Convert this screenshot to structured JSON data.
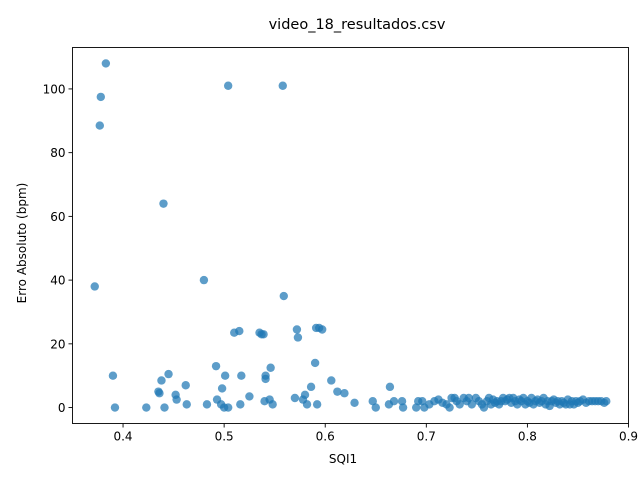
{
  "chart_data": {
    "type": "scatter",
    "title": "video_18_resultados.csv",
    "xlabel": "SQI1",
    "ylabel": "Erro Absoluto (bpm)",
    "xlim": [
      0.35,
      0.9
    ],
    "ylim": [
      -5,
      113
    ],
    "xticks": [
      0.4,
      0.5,
      0.6,
      0.7,
      0.8,
      0.9
    ],
    "xtick_labels": [
      "0.4",
      "0.5",
      "0.6",
      "0.7",
      "0.8",
      "0.9"
    ],
    "yticks": [
      0,
      20,
      40,
      60,
      80,
      100
    ],
    "ytick_labels": [
      "0",
      "20",
      "40",
      "60",
      "80",
      "100"
    ],
    "grid": false,
    "legend": "none",
    "marker_color": "#1f77b4",
    "series": [
      {
        "points": [
          [
            0.383,
            108
          ],
          [
            0.378,
            97.5
          ],
          [
            0.377,
            88.5
          ],
          [
            0.44,
            64
          ],
          [
            0.372,
            38
          ],
          [
            0.48,
            40
          ],
          [
            0.504,
            101
          ],
          [
            0.558,
            101
          ],
          [
            0.559,
            35
          ],
          [
            0.39,
            10
          ],
          [
            0.392,
            0
          ],
          [
            0.423,
            0
          ],
          [
            0.435,
            5
          ],
          [
            0.436,
            4.5
          ],
          [
            0.438,
            8.5
          ],
          [
            0.445,
            10.5
          ],
          [
            0.441,
            0
          ],
          [
            0.452,
            4
          ],
          [
            0.453,
            2.5
          ],
          [
            0.462,
            7
          ],
          [
            0.463,
            1
          ],
          [
            0.483,
            1
          ],
          [
            0.492,
            13
          ],
          [
            0.493,
            2.5
          ],
          [
            0.497,
            1
          ],
          [
            0.498,
            6
          ],
          [
            0.5,
            0
          ],
          [
            0.501,
            10
          ],
          [
            0.504,
            0
          ],
          [
            0.51,
            23.5
          ],
          [
            0.515,
            24
          ],
          [
            0.516,
            1
          ],
          [
            0.517,
            10
          ],
          [
            0.525,
            3.5
          ],
          [
            0.535,
            23.5
          ],
          [
            0.537,
            23
          ],
          [
            0.539,
            23
          ],
          [
            0.54,
            2
          ],
          [
            0.541,
            10
          ],
          [
            0.541,
            9
          ],
          [
            0.545,
            2.5
          ],
          [
            0.546,
            12.5
          ],
          [
            0.548,
            1
          ],
          [
            0.57,
            3
          ],
          [
            0.572,
            24.5
          ],
          [
            0.573,
            22
          ],
          [
            0.578,
            2.5
          ],
          [
            0.58,
            4
          ],
          [
            0.582,
            1
          ],
          [
            0.586,
            6.5
          ],
          [
            0.59,
            14
          ],
          [
            0.591,
            25
          ],
          [
            0.592,
            1
          ],
          [
            0.594,
            25
          ],
          [
            0.597,
            24.5
          ],
          [
            0.606,
            8.5
          ],
          [
            0.612,
            5
          ],
          [
            0.619,
            4.5
          ],
          [
            0.629,
            1.5
          ],
          [
            0.647,
            2
          ],
          [
            0.65,
            0
          ],
          [
            0.663,
            1
          ],
          [
            0.664,
            6.5
          ],
          [
            0.668,
            2
          ],
          [
            0.676,
            2
          ],
          [
            0.677,
            0
          ],
          [
            0.69,
            0
          ],
          [
            0.692,
            2
          ],
          [
            0.696,
            2
          ],
          [
            0.698,
            0
          ],
          [
            0.703,
            1
          ],
          [
            0.708,
            2
          ],
          [
            0.712,
            2.5
          ],
          [
            0.716,
            1.5
          ],
          [
            0.72,
            1
          ],
          [
            0.723,
            0
          ],
          [
            0.725,
            3
          ],
          [
            0.728,
            3
          ],
          [
            0.73,
            2
          ],
          [
            0.733,
            1
          ],
          [
            0.737,
            3
          ],
          [
            0.74,
            2
          ],
          [
            0.742,
            3
          ],
          [
            0.745,
            1
          ],
          [
            0.749,
            3
          ],
          [
            0.752,
            2
          ],
          [
            0.755,
            1
          ],
          [
            0.757,
            0
          ],
          [
            0.76,
            2
          ],
          [
            0.762,
            3
          ],
          [
            0.764,
            1
          ],
          [
            0.766,
            2.5
          ],
          [
            0.768,
            1.5
          ],
          [
            0.77,
            2
          ],
          [
            0.772,
            1
          ],
          [
            0.774,
            2
          ],
          [
            0.776,
            3
          ],
          [
            0.778,
            2
          ],
          [
            0.78,
            2.5
          ],
          [
            0.782,
            3
          ],
          [
            0.784,
            1.5
          ],
          [
            0.786,
            3
          ],
          [
            0.788,
            2
          ],
          [
            0.79,
            1
          ],
          [
            0.792,
            2.5
          ],
          [
            0.794,
            2
          ],
          [
            0.796,
            3
          ],
          [
            0.798,
            1
          ],
          [
            0.8,
            2
          ],
          [
            0.802,
            1.5
          ],
          [
            0.804,
            3
          ],
          [
            0.806,
            1
          ],
          [
            0.808,
            2
          ],
          [
            0.81,
            2.5
          ],
          [
            0.812,
            1.5
          ],
          [
            0.814,
            2
          ],
          [
            0.816,
            3
          ],
          [
            0.818,
            1
          ],
          [
            0.82,
            2
          ],
          [
            0.822,
            0.5
          ],
          [
            0.824,
            2
          ],
          [
            0.826,
            2.5
          ],
          [
            0.828,
            1.5
          ],
          [
            0.83,
            2
          ],
          [
            0.832,
            1
          ],
          [
            0.834,
            2
          ],
          [
            0.836,
            1.5
          ],
          [
            0.838,
            1
          ],
          [
            0.84,
            2.5
          ],
          [
            0.842,
            1
          ],
          [
            0.844,
            2
          ],
          [
            0.846,
            1
          ],
          [
            0.848,
            2
          ],
          [
            0.85,
            1.5
          ],
          [
            0.852,
            2
          ],
          [
            0.855,
            2.5
          ],
          [
            0.858,
            1.5
          ],
          [
            0.861,
            2
          ],
          [
            0.864,
            2
          ],
          [
            0.867,
            2
          ],
          [
            0.87,
            2
          ],
          [
            0.873,
            2
          ],
          [
            0.876,
            1.5
          ],
          [
            0.878,
            2
          ]
        ]
      }
    ]
  }
}
